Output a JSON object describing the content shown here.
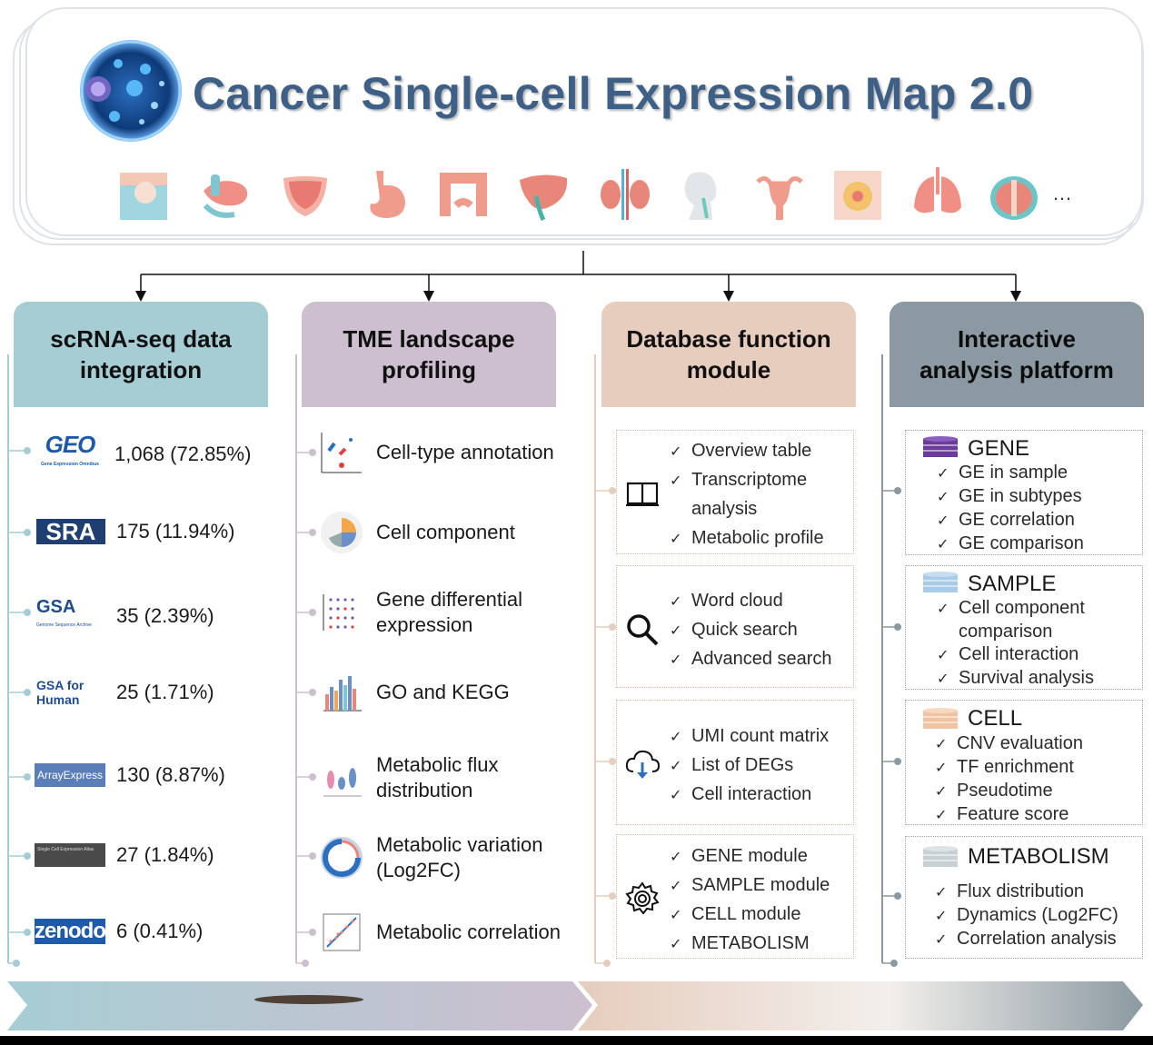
{
  "header": {
    "title": "Cancer Single-cell Expression Map 2.0",
    "ellipsis": "…",
    "organ_icons": [
      "skin-icon",
      "pancreas-icon",
      "bladder-icon",
      "stomach-icon",
      "colon-icon",
      "liver-icon",
      "kidney-icon",
      "head-neck-icon",
      "uterus-icon",
      "breast-icon",
      "lung-icon",
      "prostate-icon"
    ]
  },
  "columns": {
    "integration": {
      "title_line1": "scRNA-seq data",
      "title_line2": "integration",
      "color": "#a7cdd4",
      "sources": [
        {
          "logo": "GEO",
          "logo_sub": "Gene Expression Omnibus",
          "count": "1,068 (72.85%)"
        },
        {
          "logo": "SRA",
          "count": "175 (11.94%)"
        },
        {
          "logo": "GSA",
          "logo_sub": "Genome Sequence Archive",
          "count": "35 (2.39%)"
        },
        {
          "logo": "GSA for Human",
          "count": "25 (1.71%)"
        },
        {
          "logo": "ArrayExpress",
          "count": "130 (8.87%)"
        },
        {
          "logo": "Single Cell Expression Atlas",
          "count": "27 (1.84%)"
        },
        {
          "logo": "zenodo",
          "count": "6 (0.41%)"
        }
      ]
    },
    "tme": {
      "title_line1": "TME landscape",
      "title_line2": "profiling",
      "color": "#cdbfcf",
      "items": [
        {
          "line1": "Cell-type annotation",
          "line2": ""
        },
        {
          "line1": "Cell component",
          "line2": ""
        },
        {
          "line1": "Gene differential",
          "line2": "expression"
        },
        {
          "line1": "GO and KEGG",
          "line2": ""
        },
        {
          "line1": "Metabolic flux",
          "line2": "distribution"
        },
        {
          "line1": "Metabolic variation",
          "line2": "(Log2FC)"
        },
        {
          "line1": "Metabolic correlation",
          "line2": ""
        }
      ]
    },
    "database": {
      "title_line1": "Database function",
      "title_line2": "module",
      "color": "#e6cdbd",
      "check": "✓",
      "groups": [
        {
          "icon": "book-icon",
          "items": [
            "Overview table",
            "Transcriptome",
            "analysis",
            "Metabolic profile"
          ]
        },
        {
          "icon": "magnifier-icon",
          "items": [
            "Word cloud",
            "Quick search",
            "Advanced search"
          ]
        },
        {
          "icon": "cloud-download-icon",
          "items": [
            "UMI count matrix",
            "List of DEGs",
            "Cell interaction"
          ]
        },
        {
          "icon": "gear-icon",
          "items": [
            "GENE module",
            "SAMPLE module",
            "CELL module",
            "METABOLISM"
          ]
        }
      ]
    },
    "platform": {
      "title_line1": "Interactive",
      "title_line2": "analysis platform",
      "color": "#8b9aa2",
      "check": "✓",
      "modules": [
        {
          "title": "GENE",
          "color": "#6b3d9a",
          "items": [
            "GE in sample",
            "GE in subtypes",
            "GE correlation",
            "GE comparison"
          ]
        },
        {
          "title": "SAMPLE",
          "color": "#a8cbe6",
          "items": [
            "Cell component",
            "comparison",
            "Cell interaction",
            "Survival analysis"
          ]
        },
        {
          "title": "CELL",
          "color": "#f2c3a0",
          "items": [
            "CNV evaluation",
            "TF enrichment",
            "Pseudotime",
            "Feature score"
          ]
        },
        {
          "title": "METABOLISM",
          "color": "#c8d0d4",
          "items": [
            "Flux distribution",
            "Dynamics (Log2FC)",
            "Correlation analysis"
          ]
        }
      ]
    }
  }
}
